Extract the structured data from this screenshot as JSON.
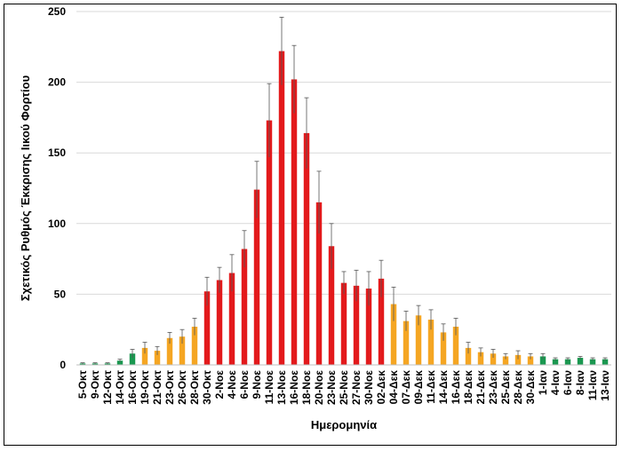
{
  "chart_data": {
    "type": "bar",
    "xlabel": "Ημερομηνία",
    "ylabel": "Σχετικός Ρυθμός Έκκρισης Ιικού Φορτίου",
    "ylim": [
      0,
      250
    ],
    "yticks": [
      0,
      50,
      100,
      150,
      200,
      250
    ],
    "grid": true,
    "error_bars": true,
    "colors": {
      "green": "#1a9850",
      "orange": "#f5a623",
      "red": "#e31a1c"
    },
    "categories": [
      "5-Οκτ",
      "9-Οκτ",
      "12-Οκτ",
      "14-Οκτ",
      "16-Οκτ",
      "19-Οκτ",
      "21-Οκτ",
      "23-Οκτ",
      "26-Οκτ",
      "28-Οκτ",
      "30-Οκτ",
      "2-Νοε",
      "4-Νοε",
      "6-Νοε",
      "9-Νοε",
      "11-Νοε",
      "13-Νοε",
      "16-Νοε",
      "18-Νοε",
      "20-Νοε",
      "23-Νοε",
      "25-Νοε",
      "27-Νοε",
      "30-Νοε",
      "02-Δεκ",
      "04-Δεκ",
      "07-Δεκ",
      "09-Δεκ",
      "11-Δεκ",
      "14-Δεκ",
      "16-Δεκ",
      "18-Δεκ",
      "21-Δεκ",
      "23-Δεκ",
      "25-Δεκ",
      "28-Δεκ",
      "30-Δεκ",
      "1-Ιαν",
      "4-Ιαν",
      "6-Ιαν",
      "8-Ιαν",
      "11-Ιαν",
      "13-Ιαν"
    ],
    "values": [
      1,
      1,
      1,
      3,
      8,
      12,
      10,
      19,
      20,
      27,
      52,
      60,
      65,
      82,
      124,
      173,
      222,
      202,
      164,
      115,
      84,
      58,
      56,
      54,
      61,
      43,
      31,
      35,
      32,
      23,
      27,
      12,
      9,
      8,
      6,
      7,
      6,
      6,
      4,
      4,
      5,
      4,
      4
    ],
    "errors": [
      0.5,
      0.5,
      0.5,
      1,
      3,
      4,
      3,
      4,
      5,
      6,
      10,
      9,
      13,
      13,
      20,
      26,
      24,
      24,
      25,
      22,
      16,
      8,
      11,
      12,
      13,
      12,
      7,
      7,
      7,
      6,
      6,
      4,
      3,
      3,
      2,
      3,
      2,
      2,
      1,
      1,
      1,
      1,
      1
    ],
    "bar_colors": [
      "green",
      "green",
      "green",
      "green",
      "green",
      "orange",
      "orange",
      "orange",
      "orange",
      "orange",
      "red",
      "red",
      "red",
      "red",
      "red",
      "red",
      "red",
      "red",
      "red",
      "red",
      "red",
      "red",
      "red",
      "red",
      "red",
      "orange",
      "orange",
      "orange",
      "orange",
      "orange",
      "orange",
      "orange",
      "orange",
      "orange",
      "orange",
      "orange",
      "orange",
      "green",
      "green",
      "green",
      "green",
      "green",
      "green"
    ]
  }
}
